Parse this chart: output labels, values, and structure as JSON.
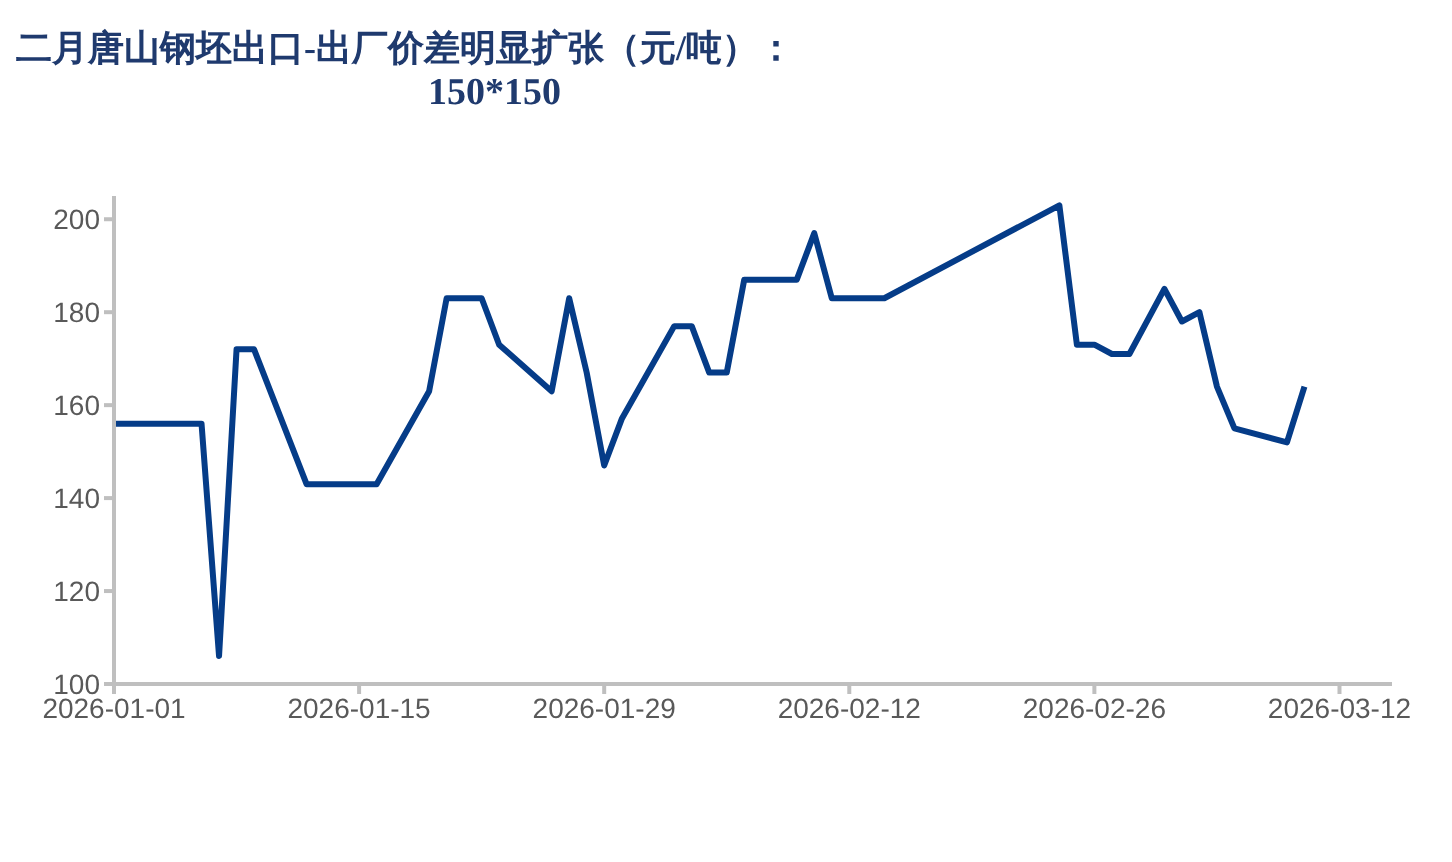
{
  "chart_data": {
    "type": "line",
    "title": "二月唐山钢坯出口-出厂价差明显扩张（元/吨）：",
    "subtitle": "150*150",
    "x": [
      "2026-01-01",
      "2026-01-06",
      "2026-01-07",
      "2026-01-08",
      "2026-01-09",
      "2026-01-12",
      "2026-01-16",
      "2026-01-19",
      "2026-01-20",
      "2026-01-22",
      "2026-01-23",
      "2026-01-26",
      "2026-01-27",
      "2026-01-28",
      "2026-01-29",
      "2026-01-30",
      "2026-02-02",
      "2026-02-03",
      "2026-02-04",
      "2026-02-05",
      "2026-02-06",
      "2026-02-09",
      "2026-02-10",
      "2026-02-11",
      "2026-02-14",
      "2026-02-24",
      "2026-02-25",
      "2026-02-26",
      "2026-02-27",
      "2026-02-28",
      "2026-03-02",
      "2026-03-03",
      "2026-03-04",
      "2026-03-05",
      "2026-03-06",
      "2026-03-09",
      "2026-03-10"
    ],
    "series": [
      {
        "color": "#053c88",
        "values": [
          156,
          156,
          106,
          172,
          172,
          143,
          143,
          163,
          183,
          183,
          173,
          163,
          183,
          167,
          147,
          157,
          177,
          177,
          167,
          167,
          187,
          187,
          197,
          183,
          183,
          203,
          173,
          173,
          171,
          171,
          185,
          178,
          180,
          164,
          155,
          152,
          164
        ]
      }
    ],
    "xlim": [
      "2026-01-01",
      "2026-03-15"
    ],
    "xticks": [
      "2026-01-01",
      "2026-01-15",
      "2026-01-29",
      "2026-02-12",
      "2026-02-26",
      "2026-03-12"
    ],
    "ylim": [
      100,
      205
    ],
    "yticks": [
      100,
      120,
      140,
      160,
      180,
      200
    ],
    "grid": false,
    "legend": false,
    "marker": "none",
    "line_style": "solid"
  }
}
